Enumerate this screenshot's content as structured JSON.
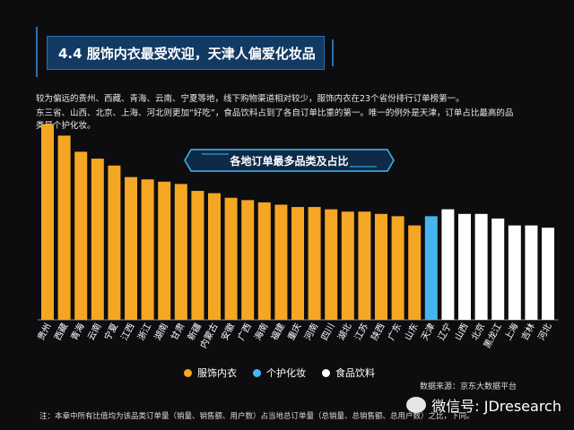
{
  "header": {
    "section_title": "4.4 服饰内衣最受欢迎，天津人偏爱化妆品"
  },
  "description": {
    "line1": "较为偏远的贵州、西藏、青海、云南、宁夏等地，线下购物渠道相对较少，服饰内衣在23个省份排行订单榜第一。",
    "line2": "东三省、山西、北京、上海、河北则更加“好吃”，食品饮料占到了各自订单比重的第一。唯一的例外是天津，订单占比最高的品",
    "line3": "类是个护化妆。"
  },
  "colors": {
    "apparel": "#f5a623",
    "personal_care": "#46b6ee",
    "food": "#ffffff"
  },
  "chart_data": {
    "type": "bar",
    "title": "各地订单最多品类及占比",
    "categories": [
      "贵州",
      "西藏",
      "青海",
      "云南",
      "宁夏",
      "江西",
      "浙江",
      "湖南",
      "甘肃",
      "新疆",
      "内蒙古",
      "安徽",
      "广西",
      "海南",
      "福建",
      "重庆",
      "河南",
      "四川",
      "湖北",
      "江苏",
      "陕西",
      "广东",
      "山东",
      "天津",
      "辽宁",
      "山西",
      "北京",
      "黑龙江",
      "上海",
      "吉林",
      "河北"
    ],
    "values": [
      85,
      80,
      73,
      70,
      67,
      62,
      61,
      60,
      59,
      56,
      55,
      53,
      52,
      51,
      50,
      49,
      49,
      48,
      47,
      47,
      46,
      45,
      41,
      45,
      48,
      46,
      46,
      44,
      41,
      41,
      40
    ],
    "group": [
      "apparel",
      "apparel",
      "apparel",
      "apparel",
      "apparel",
      "apparel",
      "apparel",
      "apparel",
      "apparel",
      "apparel",
      "apparel",
      "apparel",
      "apparel",
      "apparel",
      "apparel",
      "apparel",
      "apparel",
      "apparel",
      "apparel",
      "apparel",
      "apparel",
      "apparel",
      "apparel",
      "personal_care",
      "food",
      "food",
      "food",
      "food",
      "food",
      "food",
      "food"
    ],
    "ylim": [
      0,
      100
    ],
    "legend": [
      {
        "key": "apparel",
        "label": "服饰内衣"
      },
      {
        "key": "personal_care",
        "label": "个护化妆"
      },
      {
        "key": "food",
        "label": "食品饮料"
      }
    ],
    "legend_position": "bottom"
  },
  "footer": {
    "source": "数据来源：京东大数据平台",
    "note": "注：本章中所有比值均为该品类订单量（销量、销售额、用户数）占当地总订单量（总销量、总销售额、总用户数）之比，下同。",
    "wechat": "微信号: JDresearch"
  }
}
